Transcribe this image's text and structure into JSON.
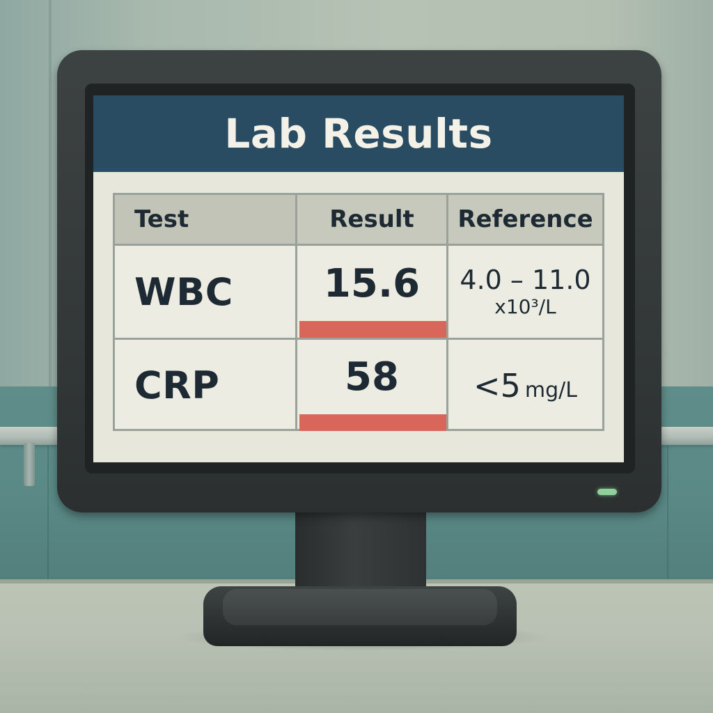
{
  "screen": {
    "title": "Lab Results"
  },
  "table": {
    "headers": [
      "Test",
      "Result",
      "Reference"
    ],
    "rows": [
      {
        "test": "WBC",
        "result": "15.6",
        "flagged": true,
        "reference_range": "4.0 – 11.0",
        "reference_unit": "x10³/L"
      },
      {
        "test": "CRP",
        "result": "58",
        "flagged": true,
        "reference_range": "<5",
        "reference_unit": "mg/L"
      }
    ]
  },
  "colors": {
    "title_bar": "#294c63",
    "screen_background": "#e8e7dc",
    "flag": "#d9665a",
    "power_led": "#8fd19a",
    "bezel": "#333838"
  },
  "monitor": {
    "power_indicator": "on"
  }
}
